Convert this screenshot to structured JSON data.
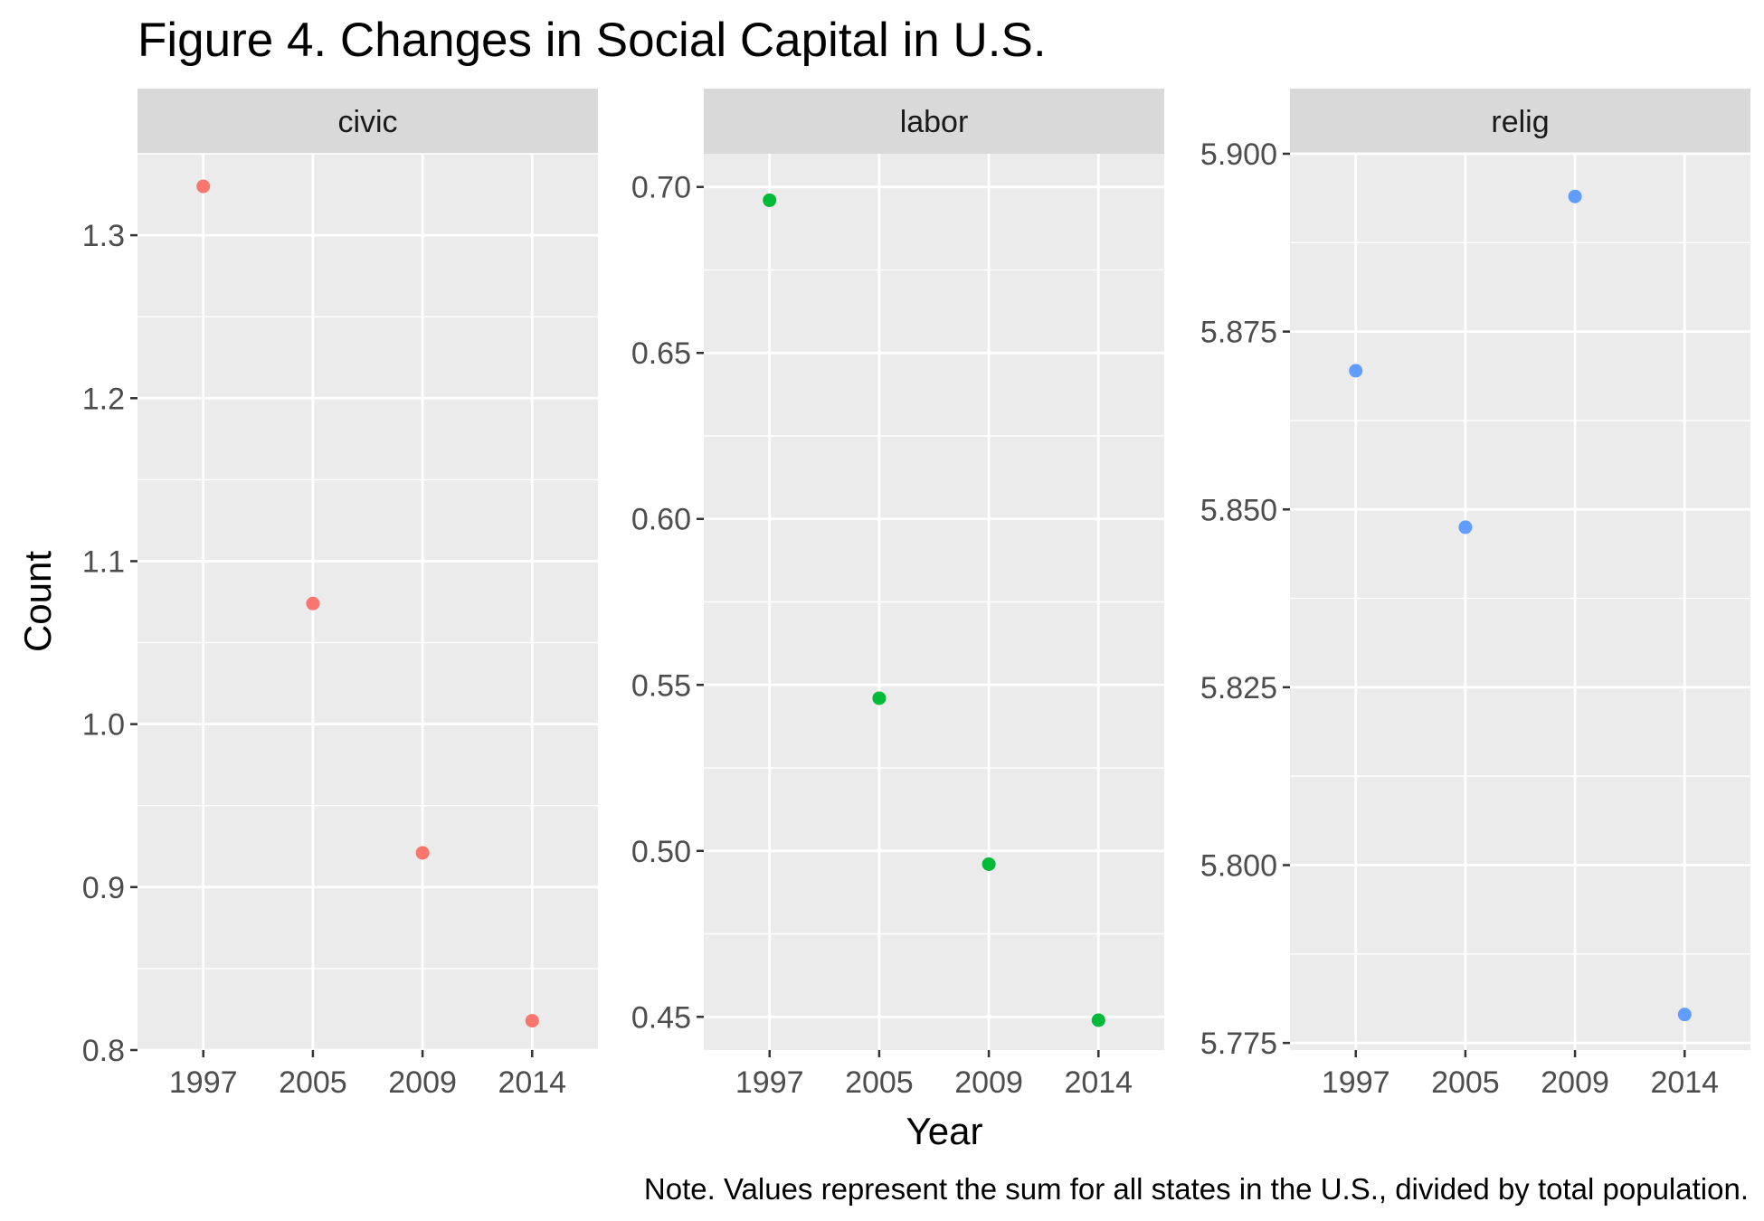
{
  "title": "Figure 4. Changes in Social Capital in U.S.",
  "caption": "Note. Values represent the sum for all states in the U.S., divided by total population.",
  "chart_data": {
    "type": "scatter",
    "facet_layout": "1 row x 3 columns, free y scales",
    "x_categories": [
      "1997",
      "2005",
      "2009",
      "2014"
    ],
    "xlabel": "Year",
    "ylabel": "Count",
    "grid": true,
    "legend": "none",
    "panels": [
      {
        "strip_label": "civic",
        "color": "#F8766D",
        "ylim": [
          0.8,
          1.35
        ],
        "yticks": [
          "0.8",
          "0.9",
          "1.0",
          "1.1",
          "1.2",
          "1.3"
        ],
        "values": [
          1.33,
          1.074,
          0.921,
          0.818
        ]
      },
      {
        "strip_label": "labor",
        "color": "#00BA38",
        "ylim": [
          0.44,
          0.71
        ],
        "yticks": [
          "0.45",
          "0.50",
          "0.55",
          "0.60",
          "0.65",
          "0.70"
        ],
        "values": [
          0.696,
          0.546,
          0.496,
          0.449
        ]
      },
      {
        "strip_label": "relig",
        "color": "#619CFF",
        "ylim": [
          5.774,
          5.9
        ],
        "yticks": [
          "5.775",
          "5.800",
          "5.825",
          "5.850",
          "5.875",
          "5.900"
        ],
        "values": [
          5.8695,
          5.8475,
          5.894,
          5.779
        ]
      }
    ]
  }
}
